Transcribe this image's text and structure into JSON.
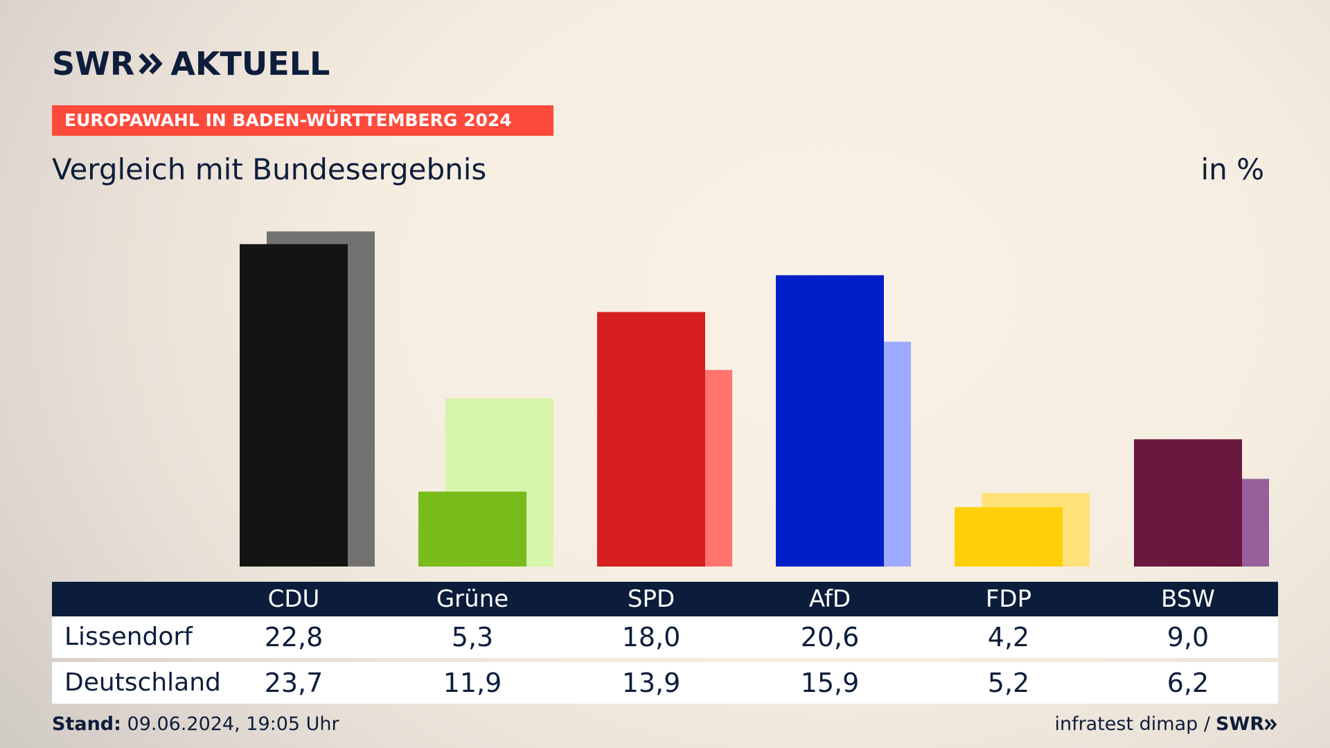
{
  "brand": {
    "logo_word": "SWR",
    "logo_suffix": "AKTUELL"
  },
  "banner": "EUROPAWAHL IN BADEN-WÜRTTEMBERG 2024",
  "subtitle": "Vergleich mit Bundesergebnis",
  "unit": "in %",
  "table": {
    "row_labels": [
      "Lissendorf",
      "Deutschland"
    ]
  },
  "footer": {
    "stand_label": "Stand:",
    "stand_value": "09.06.2024, 19:05 Uhr",
    "source": "infratest dimap /",
    "source_logo": "SWR"
  },
  "chart_data": {
    "type": "bar",
    "categories": [
      "CDU",
      "Grüne",
      "SPD",
      "AfD",
      "FDP",
      "BSW"
    ],
    "series": [
      {
        "name": "Lissendorf",
        "values": [
          22.8,
          5.3,
          18.0,
          20.6,
          4.2,
          9.0
        ],
        "labels": [
          "22,8",
          "5,3",
          "18,0",
          "20,6",
          "4,2",
          "9,0"
        ],
        "colors": [
          "#141414",
          "#78bc1b",
          "#d71f1f",
          "#001fc8",
          "#ffcf0a",
          "#6a183f"
        ]
      },
      {
        "name": "Deutschland",
        "values": [
          23.7,
          11.9,
          13.9,
          15.9,
          5.2,
          6.2
        ],
        "labels": [
          "23,7",
          "11,9",
          "13,9",
          "15,9",
          "5,2",
          "6,2"
        ],
        "colors": [
          "#737170",
          "#d8f5ac",
          "#ff746e",
          "#9eaaff",
          "#ffe27a",
          "#98609a"
        ]
      }
    ],
    "ylim": [
      0,
      24
    ]
  }
}
